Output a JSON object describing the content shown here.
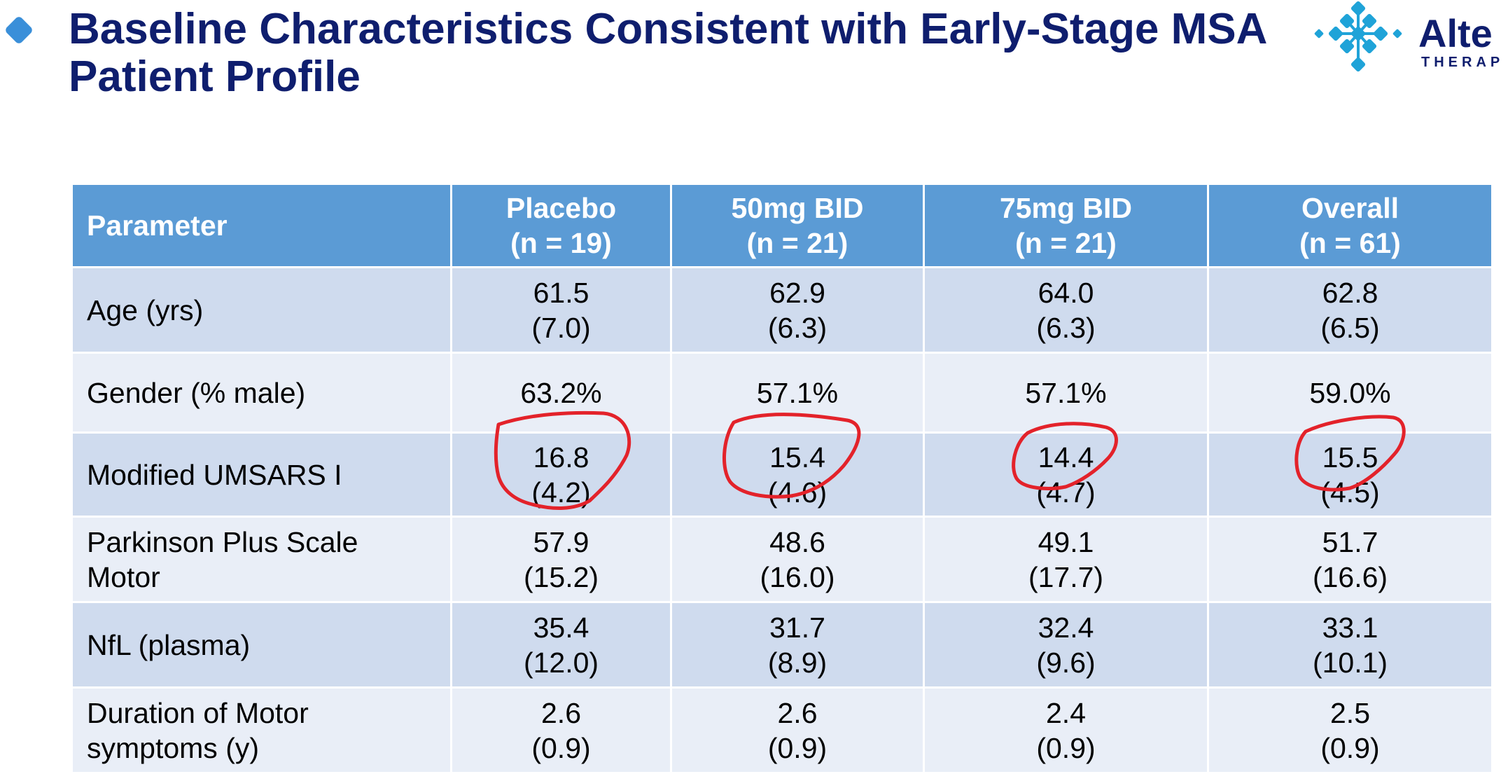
{
  "title": "Baseline Characteristics Consistent with Early-Stage MSA Patient Profile",
  "logo": {
    "name": "Alte",
    "subtitle": "THERAP"
  },
  "table": {
    "header": {
      "parameter": "Parameter",
      "columns": [
        {
          "name": "Placebo",
          "n": "(n = 19)"
        },
        {
          "name": "50mg BID",
          "n": "(n = 21)"
        },
        {
          "name": "75mg BID",
          "n": "(n = 21)"
        },
        {
          "name": "Overall",
          "n": "(n = 61)"
        }
      ]
    },
    "rows": [
      {
        "label": [
          "Age (yrs)"
        ],
        "values": [
          [
            "61.5",
            "(7.0)"
          ],
          [
            "62.9",
            "(6.3)"
          ],
          [
            "64.0",
            "(6.3)"
          ],
          [
            "62.8",
            "(6.5)"
          ]
        ]
      },
      {
        "label": [
          "Gender (% male)"
        ],
        "values": [
          [
            "63.2%"
          ],
          [
            "57.1%"
          ],
          [
            "57.1%"
          ],
          [
            "59.0%"
          ]
        ]
      },
      {
        "label": [
          "Modified UMSARS I"
        ],
        "values": [
          [
            "16.8",
            "(4.2)"
          ],
          [
            "15.4",
            "(4.6)"
          ],
          [
            "14.4",
            "(4.7)"
          ],
          [
            "15.5",
            "(4.5)"
          ]
        ]
      },
      {
        "label": [
          "Parkinson Plus Scale",
          "Motor"
        ],
        "values": [
          [
            "57.9",
            "(15.2)"
          ],
          [
            "48.6",
            "(16.0)"
          ],
          [
            "49.1",
            "(17.7)"
          ],
          [
            "51.7",
            "(16.6)"
          ]
        ]
      },
      {
        "label": [
          "NfL (plasma)"
        ],
        "values": [
          [
            "35.4",
            "(12.0)"
          ],
          [
            "31.7",
            "(8.9)"
          ],
          [
            "32.4",
            "(9.6)"
          ],
          [
            "33.1",
            "(10.1)"
          ]
        ]
      },
      {
        "label": [
          "Duration of Motor",
          "symptoms (y)"
        ],
        "values": [
          [
            "2.6",
            "(0.9)"
          ],
          [
            "2.6",
            "(0.9)"
          ],
          [
            "2.4",
            "(0.9)"
          ],
          [
            "2.5",
            "(0.9)"
          ]
        ]
      }
    ]
  },
  "annotation": {
    "color": "#e3222a"
  }
}
